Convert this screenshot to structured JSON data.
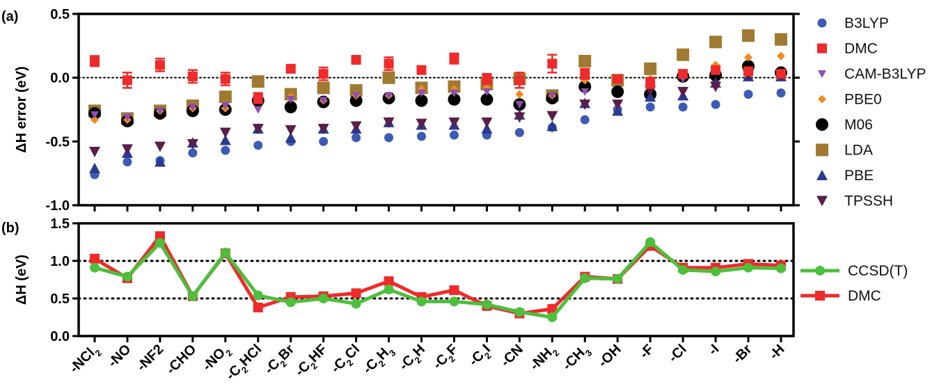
{
  "chart_data": [
    {
      "panel_label": "(a)",
      "type": "scatter",
      "ylabel": "ΔH error (eV)",
      "ylim": [
        -1.0,
        0.5
      ],
      "yticks": [
        0.5,
        0.0,
        -0.5,
        -1.0
      ],
      "ytick_labels": [
        "0.5",
        "0.0",
        "-0.5",
        "-1.0"
      ],
      "zero_reference_line": true,
      "legend_position": "right",
      "categories": [
        "-NCl2",
        "-NO",
        "-NF2",
        "-CHO",
        "-NO2",
        "-C2HCl",
        "-C2Br",
        "-C2HF",
        "-C2Cl",
        "-C2H3",
        "-C2H",
        "-C2F",
        "-C2I",
        "-CN",
        "-NH2",
        "-CH3",
        "-OH",
        "-F",
        "-Cl",
        "-I",
        "-Br",
        "-H"
      ],
      "series": [
        {
          "name": "B3LYP",
          "color": "#3b5bb5",
          "marker": "circle-small",
          "values": [
            -0.76,
            -0.66,
            -0.65,
            -0.59,
            -0.57,
            -0.53,
            -0.5,
            -0.5,
            -0.47,
            -0.47,
            -0.46,
            -0.45,
            -0.45,
            -0.43,
            -0.39,
            -0.33,
            -0.25,
            -0.23,
            -0.23,
            -0.21,
            -0.13,
            -0.12
          ]
        },
        {
          "name": "DMC",
          "color": "#ee2a2a",
          "marker": "square-error",
          "values": [
            0.13,
            -0.02,
            0.1,
            0.01,
            -0.01,
            -0.16,
            0.07,
            0.03,
            0.14,
            0.11,
            0.06,
            0.15,
            -0.01,
            -0.02,
            0.11,
            0.03,
            -0.01,
            -0.04,
            0.03,
            0.06,
            0.05,
            0.03
          ],
          "errors": [
            0.04,
            0.06,
            0.05,
            0.05,
            0.05,
            0.04,
            0.02,
            0.05,
            0.02,
            0.05,
            0.02,
            0.04,
            0.04,
            0.06,
            0.07,
            0.04,
            0.03,
            0.04,
            0.03,
            0.03,
            0.03,
            0.03
          ]
        },
        {
          "name": "CAM-B3LYP",
          "color": "#8e4fb5",
          "marker": "triangle-down-small",
          "values": [
            -0.29,
            -0.31,
            -0.26,
            -0.23,
            -0.22,
            -0.25,
            -0.17,
            -0.18,
            -0.14,
            -0.14,
            -0.12,
            -0.12,
            -0.11,
            -0.21,
            -0.14,
            -0.11,
            -0.03,
            -0.05,
            -0.01,
            -0.05,
            0.0,
            0.01
          ]
        },
        {
          "name": "PBE0",
          "color": "#f28a1e",
          "marker": "diamond-small",
          "values": [
            -0.33,
            -0.33,
            -0.26,
            -0.24,
            -0.24,
            -0.15,
            -0.15,
            -0.18,
            -0.14,
            -0.14,
            -0.09,
            -0.09,
            -0.08,
            -0.13,
            -0.14,
            -0.02,
            -0.03,
            -0.01,
            0.03,
            0.1,
            0.16,
            0.17
          ]
        },
        {
          "name": "M06",
          "color": "#000000",
          "marker": "circle-large",
          "values": [
            -0.28,
            -0.34,
            -0.28,
            -0.26,
            -0.25,
            -0.18,
            -0.23,
            -0.19,
            -0.18,
            -0.16,
            -0.18,
            -0.17,
            -0.17,
            -0.21,
            -0.16,
            -0.07,
            -0.11,
            -0.13,
            0.01,
            0.02,
            0.09,
            0.04
          ]
        },
        {
          "name": "LDA",
          "color": "#a07a32",
          "marker": "square-large",
          "values": [
            -0.26,
            -0.32,
            -0.26,
            -0.22,
            -0.15,
            -0.03,
            -0.13,
            -0.08,
            -0.1,
            0.0,
            -0.08,
            -0.07,
            -0.05,
            -0.01,
            -0.14,
            0.13,
            -0.02,
            0.07,
            0.18,
            0.28,
            0.33,
            0.3
          ]
        },
        {
          "name": "PBE",
          "color": "#2a3a8f",
          "marker": "triangle-up",
          "values": [
            -0.71,
            -0.59,
            -0.66,
            -0.51,
            -0.49,
            -0.4,
            -0.47,
            -0.4,
            -0.4,
            -0.35,
            -0.37,
            -0.37,
            -0.4,
            -0.29,
            -0.38,
            -0.2,
            -0.26,
            -0.15,
            -0.14,
            -0.04,
            0.01,
            0.01
          ]
        },
        {
          "name": "TPSSH",
          "color": "#5a1e48",
          "marker": "triangle-down",
          "values": [
            -0.58,
            -0.56,
            -0.54,
            -0.52,
            -0.43,
            -0.4,
            -0.41,
            -0.4,
            -0.38,
            -0.35,
            -0.36,
            -0.35,
            -0.35,
            -0.31,
            -0.3,
            -0.21,
            -0.21,
            -0.1,
            -0.11,
            -0.07,
            0.02,
            0.02
          ]
        }
      ]
    },
    {
      "panel_label": "(b)",
      "type": "line",
      "ylabel": "ΔH (eV)",
      "ylim": [
        0.0,
        1.5
      ],
      "yticks": [
        1.5,
        1.0,
        0.5,
        0.0
      ],
      "ytick_labels": [
        "1.5",
        "1.0",
        "0.5",
        "0.0"
      ],
      "reference_lines": [
        1.0,
        0.5
      ],
      "legend_position": "right",
      "categories": [
        "-NCl2",
        "-NO",
        "-NF2",
        "-CHO",
        "-NO2",
        "-C2HCl",
        "-C2Br",
        "-C2HF",
        "-C2Cl",
        "-C2H3",
        "-C2H",
        "-C2F",
        "-C2I",
        "-CN",
        "-NH2",
        "-CH3",
        "-OH",
        "-F",
        "-Cl",
        "-I",
        "-Br",
        "-H"
      ],
      "series": [
        {
          "name": "CCSD(T)",
          "color": "#4cbf3c",
          "marker": "circle",
          "values": [
            0.91,
            0.79,
            1.24,
            0.53,
            1.11,
            0.54,
            0.45,
            0.5,
            0.43,
            0.62,
            0.46,
            0.46,
            0.42,
            0.32,
            0.25,
            0.77,
            0.76,
            1.25,
            0.88,
            0.86,
            0.91,
            0.9
          ]
        },
        {
          "name": "DMC",
          "color": "#ee2a2a",
          "marker": "square",
          "values": [
            1.03,
            0.77,
            1.33,
            0.53,
            1.1,
            0.38,
            0.52,
            0.53,
            0.57,
            0.73,
            0.52,
            0.61,
            0.4,
            0.3,
            0.36,
            0.79,
            0.76,
            1.2,
            0.91,
            0.91,
            0.96,
            0.94
          ],
          "errors": [
            0.04,
            0.06,
            0.05,
            0.05,
            0.05,
            0.04,
            0.02,
            0.05,
            0.02,
            0.05,
            0.02,
            0.04,
            0.04,
            0.06,
            0.07,
            0.04,
            0.03,
            0.04,
            0.03,
            0.03,
            0.03,
            0.03
          ]
        }
      ]
    }
  ],
  "x_tick_labels": [
    {
      "main": "-NCl",
      "sub": "2",
      "sub2": ""
    },
    {
      "main": "-NO",
      "sub": "",
      "sub2": ""
    },
    {
      "main": "-NF2",
      "sub": "",
      "sub2": ""
    },
    {
      "main": "-CHO",
      "sub": "",
      "sub2": ""
    },
    {
      "main": "-NO",
      "sub": "2",
      "sub2": ""
    },
    {
      "main": "-C",
      "sub": "2",
      "sub2": "HCl"
    },
    {
      "main": "-C",
      "sub": "2",
      "sub2": "Br"
    },
    {
      "main": "-C",
      "sub": "2",
      "sub2": "HF"
    },
    {
      "main": "-C",
      "sub": "2",
      "sub2": "Cl"
    },
    {
      "main": "-C",
      "sub": "2",
      "sub2": "H",
      "sub3": "3"
    },
    {
      "main": "-C",
      "sub": "2",
      "sub2": "H"
    },
    {
      "main": "-C",
      "sub": "2",
      "sub2": "F"
    },
    {
      "main": "-C",
      "sub": "2",
      "sub2": "I"
    },
    {
      "main": "-CN",
      "sub": "",
      "sub2": ""
    },
    {
      "main": "-NH",
      "sub": "2",
      "sub2": ""
    },
    {
      "main": "-CH",
      "sub": "3",
      "sub2": ""
    },
    {
      "main": "-OH",
      "sub": "",
      "sub2": ""
    },
    {
      "main": "-F",
      "sub": "",
      "sub2": ""
    },
    {
      "main": "-Cl",
      "sub": "",
      "sub2": ""
    },
    {
      "main": "-I",
      "sub": "",
      "sub2": ""
    },
    {
      "main": "-Br",
      "sub": "",
      "sub2": ""
    },
    {
      "main": "-H",
      "sub": "",
      "sub2": ""
    }
  ]
}
